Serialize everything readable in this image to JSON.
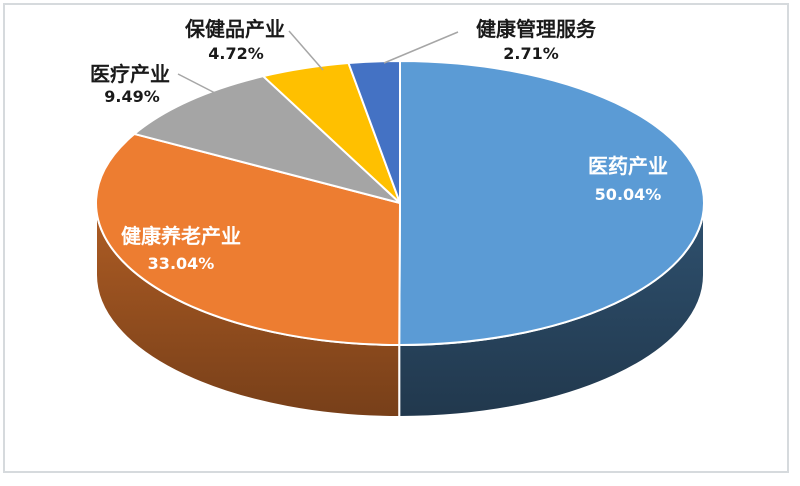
{
  "page": {
    "background_color": "#FFFFFF",
    "frame_border_color": "#D6DADD"
  },
  "chart_data": {
    "type": "pie",
    "style": "3d",
    "title": "",
    "legend": "none",
    "start_angle_deg": 0,
    "direction": "clockwise",
    "label_format": "category name + percentage",
    "inside_label_color": "#FFFFFF",
    "outside_label_color": "#1A1A1A",
    "leader_line_color": "#A6A6A6",
    "slices": [
      {
        "name": "医药产业",
        "value": 50.04,
        "label": "50.04%",
        "color": "#5B9BD5",
        "label_placement": "inside"
      },
      {
        "name": "健康养老产业",
        "value": 33.04,
        "label": "33.04%",
        "color": "#ED7D31",
        "label_placement": "inside"
      },
      {
        "name": "医疗产业",
        "value": 9.49,
        "label": "9.49%",
        "color": "#A5A5A5",
        "label_placement": "outside"
      },
      {
        "name": "保健品产业",
        "value": 4.72,
        "label": "4.72%",
        "color": "#FFC000",
        "label_placement": "outside"
      },
      {
        "name": "健康管理服务",
        "value": 2.71,
        "label": "2.71%",
        "color": "#4472C4",
        "label_placement": "outside"
      }
    ]
  }
}
